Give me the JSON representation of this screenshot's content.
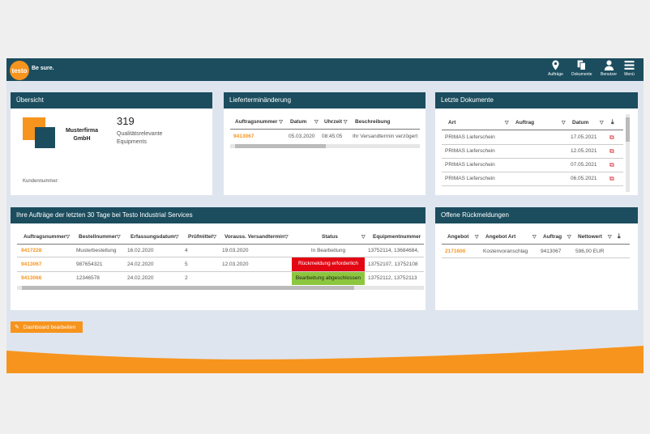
{
  "brand": {
    "logo": "testo",
    "claim": "Be sure."
  },
  "nav": [
    {
      "label": "Aufträge",
      "icon": "location-pin-icon"
    },
    {
      "label": "Dokumente",
      "icon": "documents-icon"
    },
    {
      "label": "Benutzer",
      "icon": "user-icon"
    },
    {
      "label": "Menü",
      "icon": "hamburger-menu-icon"
    }
  ],
  "overview": {
    "title": "Übersicht",
    "company": "Musterfirma GmbH",
    "count": "319",
    "count_label": "Qualitätsrelevante Equipments",
    "customer_label": "Kundennummer:"
  },
  "delivery": {
    "title": "Lieferterminänderung",
    "columns": [
      "Auftragsnummer",
      "Datum",
      "Uhrzeit",
      "Beschreibung"
    ],
    "rows": [
      {
        "order": "9413067",
        "date": "05.03.2020",
        "time": "08:45:05",
        "description": "Ihr Versandtermin verzögert"
      }
    ]
  },
  "documents": {
    "title": "Letzte Dokumente",
    "columns": [
      "Art",
      "Auftrag",
      "Datum"
    ],
    "rows": [
      {
        "type": "PRIMAS Lieferschein",
        "order": "",
        "date": "17.05.2021"
      },
      {
        "type": "PRIMAS Lieferschein",
        "order": "",
        "date": "12.05.2021"
      },
      {
        "type": "PRIMAS Lieferschein",
        "order": "",
        "date": "07.05.2021"
      },
      {
        "type": "PRIMAS Lieferschein",
        "order": "",
        "date": "06.05.2021"
      }
    ]
  },
  "orders": {
    "title": "Ihre Aufträge der letzten 30 Tage bei Testo Industrial Services",
    "columns": [
      "Auftragsnummer",
      "Bestellnummer",
      "Erfassungsdatum",
      "Prüfmittel",
      "Vorauss. Versandtermin",
      "Status",
      "Equipmentnummer"
    ],
    "rows": [
      {
        "order": "9417228",
        "po": "Musterbestellung",
        "date": "16.02.2020",
        "items": "4",
        "ship": "19.03.2020",
        "status": "In Bearbeitung",
        "status_type": "neutral",
        "equipment": "13752114, 13684684,"
      },
      {
        "order": "9413067",
        "po": "987654321",
        "date": "24.02.2020",
        "items": "5",
        "ship": "12.03.2020",
        "status": "Rückmeldung erforderlich",
        "status_type": "red",
        "equipment": "13752107, 13752108"
      },
      {
        "order": "9413066",
        "po": "12346578",
        "date": "24.02.2020",
        "items": "2",
        "ship": "",
        "status": "Bearbeitung abgeschlossen",
        "status_type": "green",
        "equipment": "13752112, 13752113"
      }
    ]
  },
  "feedback": {
    "title": "Offene Rückmeldungen",
    "columns": [
      "Angebot",
      "Angebot Art",
      "Auftrag",
      "Nettowert"
    ],
    "rows": [
      {
        "offer": "2171600",
        "type": "Kostenvoranschlag",
        "order": "9413067",
        "net": "596,00 EUR"
      }
    ]
  },
  "edit_button": "Dashboard bearbeiten",
  "colors": {
    "header": "#1b4d5e",
    "accent": "#f7941d",
    "red": "#e30613",
    "green": "#8cc63f"
  }
}
